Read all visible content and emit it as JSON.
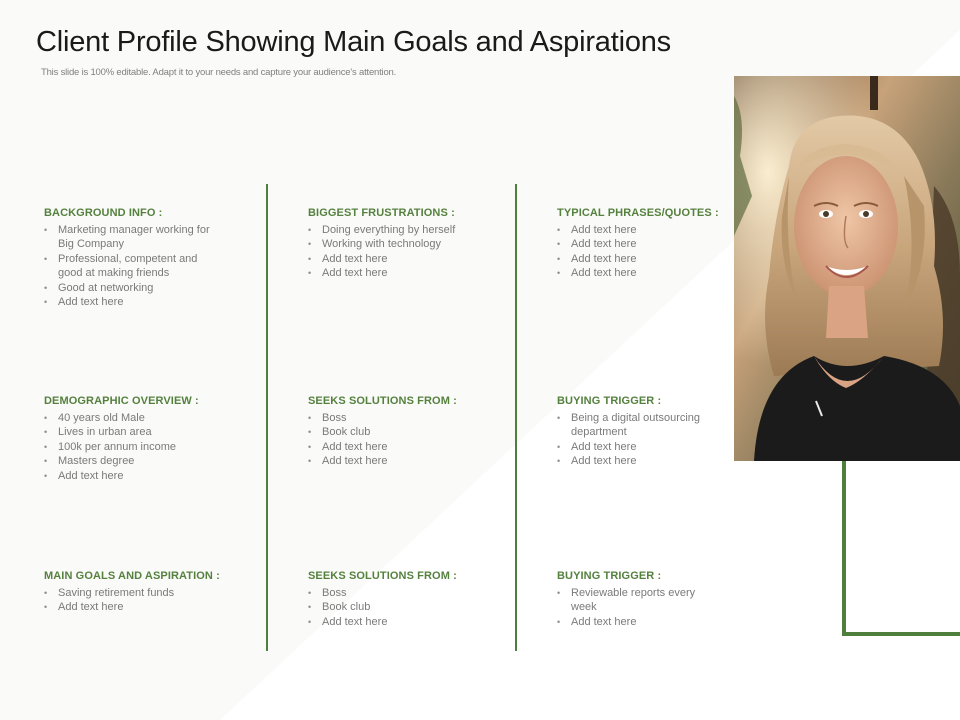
{
  "slide": {
    "title": "Client Profile Showing Main Goals and Aspirations",
    "subtitle": "This slide is 100% editable. Adapt it to your needs and capture your audience's attention."
  },
  "sections": {
    "background": {
      "heading": "BACKGROUND INFO :",
      "items": [
        "Marketing manager working for Big Company",
        "Professional, competent and good at making friends",
        "Good at networking",
        "Add text here"
      ]
    },
    "frustrations": {
      "heading": "BIGGEST FRUSTRATIONS :",
      "items": [
        "Doing everything by herself",
        "Working with technology",
        "Add text here",
        "Add text here"
      ]
    },
    "phrases": {
      "heading": "TYPICAL PHRASES/QUOTES :",
      "items": [
        "Add text here",
        "Add text here",
        "Add text here",
        "Add text here"
      ]
    },
    "demographic": {
      "heading": "DEMOGRAPHIC OVERVIEW :",
      "items": [
        "40 years old Male",
        "Lives in urban area",
        "100k per annum income",
        "Masters degree",
        "Add text here"
      ]
    },
    "solutions_1": {
      "heading": "SEEKS SOLUTIONS FROM :",
      "items": [
        "Boss",
        "Book club",
        "Add text here",
        "Add text here"
      ]
    },
    "trigger_1": {
      "heading": "BUYING TRIGGER :",
      "items": [
        "Being a digital outsourcing department",
        "Add text here",
        "Add text here"
      ]
    },
    "goals": {
      "heading": "MAIN GOALS AND ASPIRATION :",
      "items": [
        "Saving retirement funds",
        "Add text here"
      ]
    },
    "solutions_2": {
      "heading": "SEEKS SOLUTIONS FROM :",
      "items": [
        "Boss",
        "Book club",
        "Add text here"
      ]
    },
    "trigger_2": {
      "heading": "BUYING TRIGGER :",
      "items": [
        "Reviewable reports every week",
        "Add text here"
      ]
    }
  },
  "colors": {
    "accent_green": "#4f7f3c",
    "heading_green": "#55813f",
    "body_text": "#7a7a7a"
  }
}
